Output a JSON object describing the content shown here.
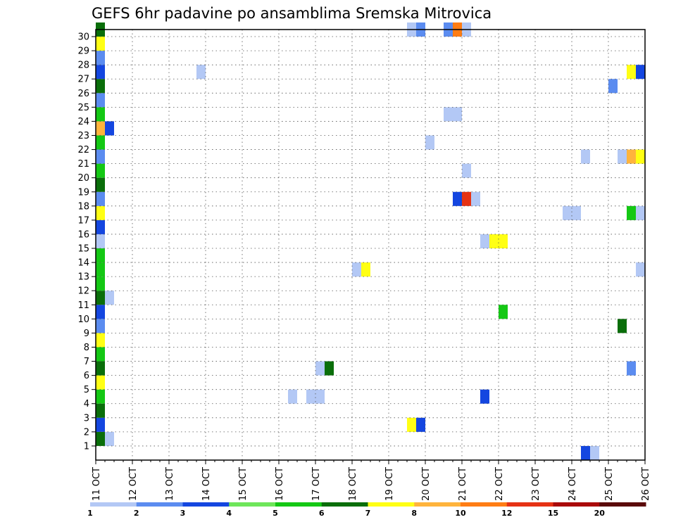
{
  "chart_data": {
    "type": "heatmap",
    "title": "GEFS 6hr padavine po ansamblima Sremska Mitrovica",
    "xlabel": "",
    "ylabel": "",
    "x_tick_labels": [
      "11 OCT",
      "12 OCT",
      "13 OCT",
      "14 OCT",
      "15 OCT",
      "16 OCT",
      "17 OCT",
      "18 OCT",
      "19 OCT",
      "20 OCT",
      "21 OCT",
      "22 OCT",
      "23 OCT",
      "24 OCT",
      "25 OCT",
      "26 OCT"
    ],
    "x_range_days": [
      11,
      26
    ],
    "y_tick_labels": [
      "1",
      "2",
      "3",
      "4",
      "5",
      "6",
      "7",
      "8",
      "9",
      "10",
      "11",
      "12",
      "13",
      "14",
      "15",
      "16",
      "17",
      "18",
      "19",
      "20",
      "21",
      "22",
      "23",
      "24",
      "25",
      "26",
      "27",
      "28",
      "29",
      "30"
    ],
    "y_range": [
      0,
      30
    ],
    "grid": true,
    "legend": {
      "position": "bottom",
      "labels": [
        "1",
        "2",
        "3",
        "4",
        "5",
        "6",
        "7",
        "8",
        "10",
        "12",
        "15",
        "20"
      ],
      "colors": [
        "#b3c8f5",
        "#5b8cf0",
        "#1446e0",
        "#6ee65a",
        "#14c814",
        "#0a6e0a",
        "#ffff14",
        "#ffb43c",
        "#ff7d14",
        "#e63214",
        "#aa0a0a",
        "#5a0a0a"
      ]
    },
    "cells": [
      {
        "m": 1,
        "d": 11.0,
        "c": 6
      },
      {
        "m": 2,
        "d": 11.0,
        "c": 3
      },
      {
        "m": 3,
        "d": 11.0,
        "c": 6
      },
      {
        "m": 4,
        "d": 11.0,
        "c": 5
      },
      {
        "m": 5,
        "d": 11.0,
        "c": 7
      },
      {
        "m": 6,
        "d": 11.0,
        "c": 6
      },
      {
        "m": 7,
        "d": 11.0,
        "c": 5
      },
      {
        "m": 8,
        "d": 11.0,
        "c": 7
      },
      {
        "m": 9,
        "d": 11.0,
        "c": 2
      },
      {
        "m": 10,
        "d": 11.0,
        "c": 3
      },
      {
        "m": 11,
        "d": 11.0,
        "c": 6
      },
      {
        "m": 12,
        "d": 11.0,
        "c": 5
      },
      {
        "m": 13,
        "d": 11.0,
        "c": 5
      },
      {
        "m": 14,
        "d": 11.0,
        "c": 5
      },
      {
        "m": 15,
        "d": 11.0,
        "c": 1
      },
      {
        "m": 16,
        "d": 11.0,
        "c": 3
      },
      {
        "m": 17,
        "d": 11.0,
        "c": 7
      },
      {
        "m": 18,
        "d": 11.0,
        "c": 2
      },
      {
        "m": 19,
        "d": 11.0,
        "c": 6
      },
      {
        "m": 20,
        "d": 11.0,
        "c": 5
      },
      {
        "m": 21,
        "d": 11.0,
        "c": 2
      },
      {
        "m": 22,
        "d": 11.0,
        "c": 5
      },
      {
        "m": 23,
        "d": 11.0,
        "c": 8
      },
      {
        "m": 24,
        "d": 11.0,
        "c": 5
      },
      {
        "m": 25,
        "d": 11.0,
        "c": 2
      },
      {
        "m": 26,
        "d": 11.0,
        "c": 6
      },
      {
        "m": 27,
        "d": 11.0,
        "c": 3
      },
      {
        "m": 28,
        "d": 11.0,
        "c": 2
      },
      {
        "m": 29,
        "d": 11.0,
        "c": 7
      },
      {
        "m": 30,
        "d": 11.0,
        "c": 6
      },
      {
        "m": 1,
        "d": 11.25,
        "c": 1
      },
      {
        "m": 11,
        "d": 11.25,
        "c": 1
      },
      {
        "m": 23,
        "d": 11.25,
        "c": 3
      },
      {
        "m": 27,
        "d": 13.75,
        "c": 1
      },
      {
        "m": 4,
        "d": 16.25,
        "c": 1
      },
      {
        "m": 4,
        "d": 16.75,
        "c": 1
      },
      {
        "m": 4,
        "d": 17.0,
        "c": 1
      },
      {
        "m": 6,
        "d": 17.0,
        "c": 1
      },
      {
        "m": 6,
        "d": 17.25,
        "c": 6
      },
      {
        "m": 13,
        "d": 18.0,
        "c": 1
      },
      {
        "m": 13,
        "d": 18.25,
        "c": 7
      },
      {
        "m": 2,
        "d": 19.5,
        "c": 7
      },
      {
        "m": 2,
        "d": 19.75,
        "c": 3
      },
      {
        "m": 30,
        "d": 19.5,
        "c": 1
      },
      {
        "m": 30,
        "d": 19.75,
        "c": 2
      },
      {
        "m": 22,
        "d": 20.0,
        "c": 1
      },
      {
        "m": 30,
        "d": 20.5,
        "c": 2
      },
      {
        "m": 30,
        "d": 20.75,
        "c": 9
      },
      {
        "m": 30,
        "d": 21.0,
        "c": 1
      },
      {
        "m": 24,
        "d": 20.5,
        "c": 1
      },
      {
        "m": 24,
        "d": 20.75,
        "c": 1
      },
      {
        "m": 18,
        "d": 20.75,
        "c": 3
      },
      {
        "m": 18,
        "d": 21.0,
        "c": 10
      },
      {
        "m": 18,
        "d": 21.25,
        "c": 1
      },
      {
        "m": 20,
        "d": 21.0,
        "c": 1
      },
      {
        "m": 15,
        "d": 21.5,
        "c": 1
      },
      {
        "m": 15,
        "d": 21.75,
        "c": 7
      },
      {
        "m": 15,
        "d": 22.0,
        "c": 7
      },
      {
        "m": 4,
        "d": 21.5,
        "c": 3
      },
      {
        "m": 10,
        "d": 22.0,
        "c": 5
      },
      {
        "m": 17,
        "d": 23.75,
        "c": 1
      },
      {
        "m": 17,
        "d": 24.0,
        "c": 1
      },
      {
        "m": 0,
        "d": 24.25,
        "c": 3
      },
      {
        "m": 0,
        "d": 24.5,
        "c": 1
      },
      {
        "m": 21,
        "d": 24.25,
        "c": 1
      },
      {
        "m": 9,
        "d": 25.25,
        "c": 6
      },
      {
        "m": 26,
        "d": 25.0,
        "c": 2
      },
      {
        "m": 21,
        "d": 25.25,
        "c": 1
      },
      {
        "m": 21,
        "d": 25.5,
        "c": 8
      },
      {
        "m": 21,
        "d": 25.75,
        "c": 7
      },
      {
        "m": 6,
        "d": 25.5,
        "c": 2
      },
      {
        "m": 17,
        "d": 25.5,
        "c": 5
      },
      {
        "m": 17,
        "d": 25.75,
        "c": 1
      },
      {
        "m": 27,
        "d": 25.5,
        "c": 7
      },
      {
        "m": 27,
        "d": 25.75,
        "c": 3
      },
      {
        "m": 13,
        "d": 25.75,
        "c": 1
      }
    ]
  }
}
